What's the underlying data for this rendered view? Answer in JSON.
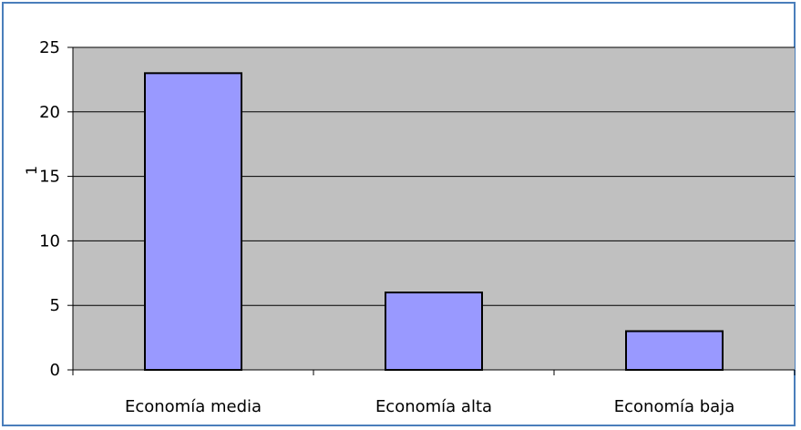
{
  "chart_data": {
    "type": "bar",
    "categories": [
      "Economía media",
      "Economía alta",
      "Economía baja"
    ],
    "values": [
      23,
      6,
      3
    ],
    "ylabel": "1",
    "xlabel": "",
    "ylim": [
      0,
      25
    ],
    "yticks": [
      0,
      5,
      10,
      15,
      20,
      25
    ],
    "grid": true,
    "legend": "none",
    "colors": {
      "bar_fill": "#9999ff",
      "bar_stroke": "#000000",
      "plot_background": "#c0c0c0",
      "frame_border": "#4a7ebb"
    }
  }
}
